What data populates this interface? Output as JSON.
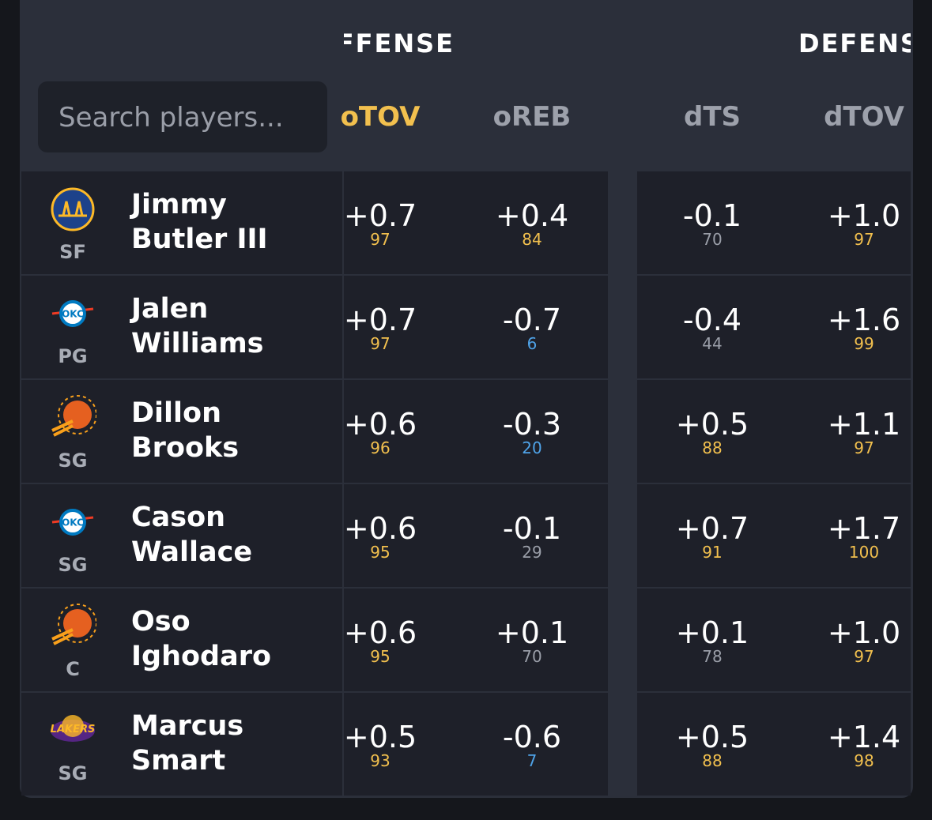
{
  "header": {
    "groups": [
      "OFFENSE",
      "DEFENSE"
    ],
    "search_placeholder": "Search players...",
    "columns": [
      "oTOV",
      "oREB",
      "dTS",
      "dTOV"
    ]
  },
  "rows": [
    {
      "name": [
        "Jimmy",
        "Butler III"
      ],
      "position": "SF",
      "cells": [
        {
          "value": "+0.7",
          "pct": 97
        },
        {
          "value": "+0.4",
          "pct": 84
        },
        {
          "value": "-0.1",
          "pct": 70
        },
        {
          "value": "+1.0",
          "pct": 97
        }
      ]
    },
    {
      "name": [
        "Jalen",
        "Williams"
      ],
      "position": "PG",
      "cells": [
        {
          "value": "+0.7",
          "pct": 97
        },
        {
          "value": "-0.7",
          "pct": 6
        },
        {
          "value": "-0.4",
          "pct": 44
        },
        {
          "value": "+1.6",
          "pct": 99
        }
      ]
    },
    {
      "name": [
        "Dillon",
        "Brooks"
      ],
      "position": "SG",
      "cells": [
        {
          "value": "+0.6",
          "pct": 96
        },
        {
          "value": "-0.3",
          "pct": 20
        },
        {
          "value": "+0.5",
          "pct": 88
        },
        {
          "value": "+1.1",
          "pct": 97
        }
      ]
    },
    {
      "name": [
        "Cason",
        "Wallace"
      ],
      "position": "SG",
      "cells": [
        {
          "value": "+0.6",
          "pct": 95
        },
        {
          "value": "-0.1",
          "pct": 29
        },
        {
          "value": "+0.7",
          "pct": 91
        },
        {
          "value": "+1.7",
          "pct": 100
        }
      ]
    },
    {
      "name": [
        "Oso",
        "Ighodaro"
      ],
      "position": "C",
      "cells": [
        {
          "value": "+0.6",
          "pct": 95
        },
        {
          "value": "+0.1",
          "pct": 70
        },
        {
          "value": "+0.1",
          "pct": 78
        },
        {
          "value": "+1.0",
          "pct": 97
        }
      ]
    },
    {
      "name": [
        "Marcus",
        "Smart"
      ],
      "position": "SG",
      "cells": [
        {
          "value": "+0.5",
          "pct": 93
        },
        {
          "value": "-0.6",
          "pct": 7
        },
        {
          "value": "+0.5",
          "pct": 88
        },
        {
          "value": "+1.4",
          "pct": 98
        }
      ]
    }
  ]
}
